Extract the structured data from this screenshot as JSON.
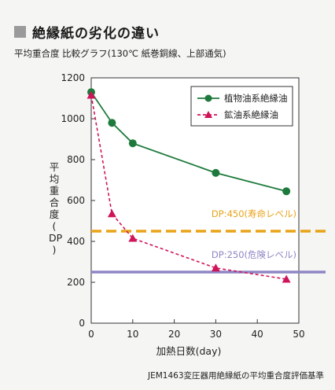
{
  "header": {
    "title": "絶縁紙の劣化の違い",
    "subtitle": "平均重合度 比較グラフ(130℃ 紙巻銅線、上部通気)"
  },
  "footer": {
    "note": "JEM1463変圧器用絶縁紙の平均重合度評価基準"
  },
  "chart_data": {
    "type": "line",
    "xlabel": "加熱日数(day)",
    "ylabel": "平均重合度(DP)",
    "xlim": [
      0,
      50
    ],
    "ylim": [
      0,
      1200
    ],
    "xticks": [
      0,
      10,
      20,
      30,
      40,
      50
    ],
    "yticks": [
      0,
      200,
      400,
      600,
      800,
      1000,
      1200
    ],
    "grid": false,
    "legend_position": "top-right",
    "series": [
      {
        "name": "植物油系絶縁油",
        "color": "#1e7a3c",
        "style": "solid",
        "marker": "circle",
        "x": [
          0,
          5,
          10,
          30,
          47
        ],
        "y": [
          1130,
          980,
          880,
          735,
          645
        ]
      },
      {
        "name": "鉱油系絶縁油",
        "color": "#d0145a",
        "style": "dashed",
        "marker": "triangle",
        "x": [
          0,
          5,
          10,
          30,
          47
        ],
        "y": [
          1115,
          535,
          415,
          270,
          215
        ]
      }
    ],
    "reference_lines": [
      {
        "label": "DP:450(寿命レベル)",
        "y": 450,
        "color": "#e8a318",
        "style": "dashed"
      },
      {
        "label": "DP:250(危険レベル)",
        "y": 250,
        "color": "#8e86c4",
        "style": "solid"
      }
    ]
  }
}
